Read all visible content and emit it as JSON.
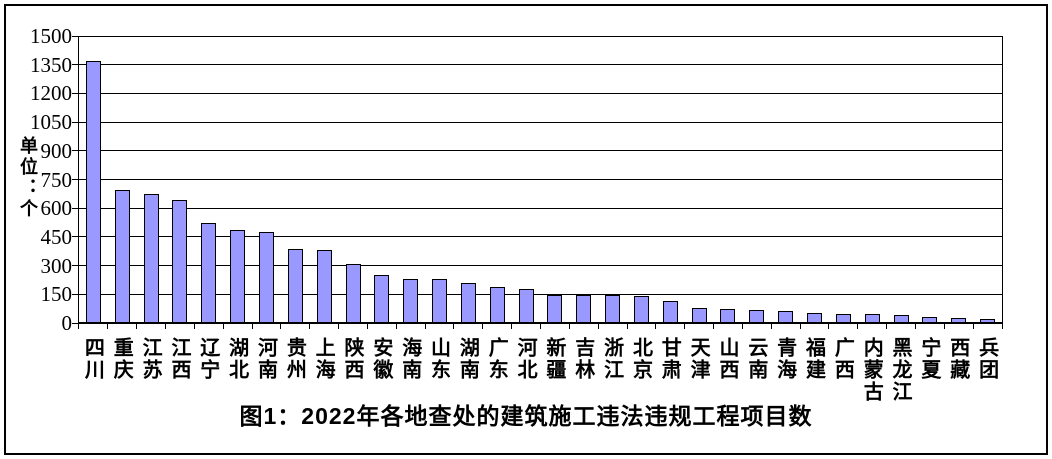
{
  "chart_data": {
    "type": "bar",
    "title": "图1：2022年各地查处的建筑施工违法违规工程项目数",
    "ylabel": "单位：个",
    "xlabel": "",
    "ylim": [
      0,
      1500
    ],
    "ytick_step": 150,
    "yticks": [
      0,
      150,
      300,
      450,
      600,
      750,
      900,
      1050,
      1200,
      1350,
      1500
    ],
    "grid": true,
    "legend_position": "none",
    "bar_color": "#9999FF",
    "bar_border_color": "#000000",
    "background_color": "#FFFFFF",
    "categories": [
      "四川",
      "重庆",
      "江苏",
      "江西",
      "辽宁",
      "湖北",
      "河南",
      "贵州",
      "上海",
      "陕西",
      "安徽",
      "海南",
      "山东",
      "湖南",
      "广东",
      "河北",
      "新疆",
      "吉林",
      "浙江",
      "北京",
      "甘肃",
      "天津",
      "山西",
      "云南",
      "青海",
      "福建",
      "广西",
      "内蒙古",
      "黑龙江",
      "宁夏",
      "西藏",
      "兵团"
    ],
    "values": [
      1370,
      695,
      675,
      645,
      525,
      488,
      476,
      388,
      380,
      306,
      249,
      230,
      228,
      210,
      190,
      176,
      148,
      147,
      145,
      140,
      115,
      76,
      72,
      69,
      62,
      50,
      46,
      45,
      44,
      30,
      26,
      21
    ]
  }
}
